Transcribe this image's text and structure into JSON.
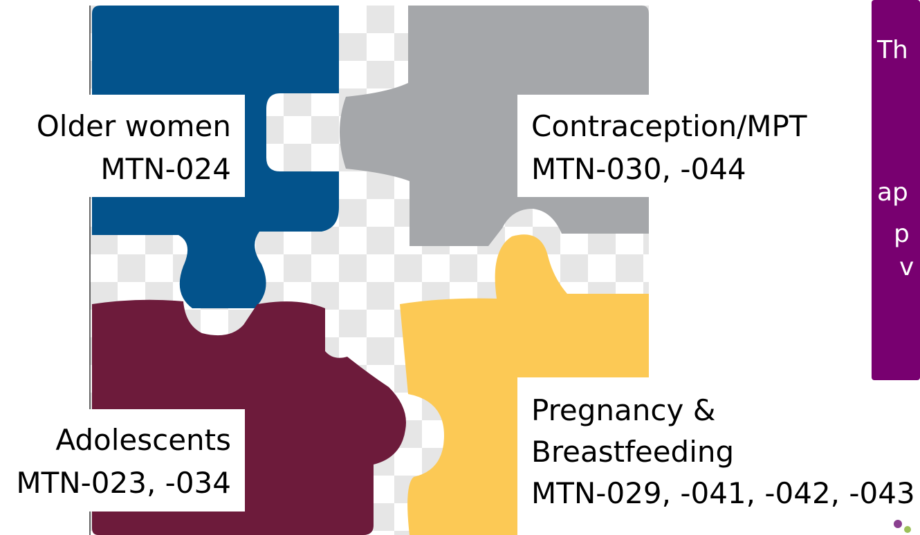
{
  "pieces": [
    {
      "lines": [
        "Older women",
        "MTN-024"
      ]
    },
    {
      "lines": [
        "Contraception/MPT",
        "MTN-030, -044"
      ]
    },
    {
      "lines": [
        "Adolescents",
        "MTN-023, -034"
      ]
    },
    {
      "lines": [
        "Pregnancy &",
        "Breastfeeding",
        "MTN-029, -041, -042, -043"
      ]
    }
  ],
  "side_panel": {
    "lines": [
      "Th",
      "ap",
      "p",
      "v"
    ]
  }
}
